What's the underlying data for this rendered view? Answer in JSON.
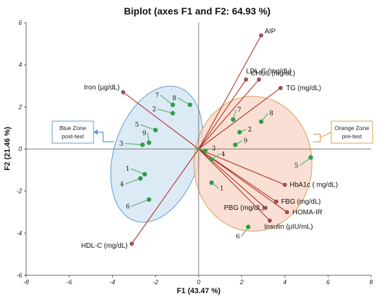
{
  "chart_data": {
    "type": "scatter",
    "subtype": "biplot",
    "title": "Biplot (axes F1 and F2: 64.93 %)",
    "xlabel": "F1 (43.47 %)",
    "ylabel": "F2 (21.46 %)",
    "xlim": [
      -8,
      8
    ],
    "ylim": [
      -6,
      6
    ],
    "x_ticks": [
      -8,
      -6,
      -4,
      -2,
      0,
      2,
      4,
      6,
      8
    ],
    "y_ticks": [
      -6,
      -4,
      -2,
      0,
      2,
      4,
      6
    ],
    "grid": false,
    "variables": [
      {
        "name": "AIP",
        "x": 2.9,
        "y": 5.4
      },
      {
        "name": "LDL-C (mg/dL)",
        "x": 2.2,
        "y": 3.3
      },
      {
        "name": "CHOL (mg/dL)",
        "x": 2.8,
        "y": 3.3
      },
      {
        "name": "TG (mg/dL)",
        "x": 3.8,
        "y": 2.9
      },
      {
        "name": "Iron (µg/dL)",
        "x": -3.5,
        "y": 2.7
      },
      {
        "name": "HbA1c ( mg/dL)",
        "x": 4.0,
        "y": -1.7
      },
      {
        "name": "FBG (mg/dL)",
        "x": 3.6,
        "y": -2.5
      },
      {
        "name": "HOMA-IR",
        "x": 4.1,
        "y": -3.0
      },
      {
        "name": "PBG (mg/dL)",
        "x": 3.1,
        "y": -2.8
      },
      {
        "name": "Insulin (µIU/mL)",
        "x": 3.3,
        "y": -3.4
      },
      {
        "name": "HDL-C (mg/dL)",
        "x": -3.1,
        "y": -4.5
      }
    ],
    "observations": [
      {
        "group": "post-test",
        "label": "1",
        "x": -2.5,
        "y": -1.2
      },
      {
        "group": "post-test",
        "label": "2",
        "x": -1.2,
        "y": 1.7
      },
      {
        "group": "post-test",
        "label": "3",
        "x": -2.6,
        "y": 0.2
      },
      {
        "group": "post-test",
        "label": "4",
        "x": -2.7,
        "y": -1.4
      },
      {
        "group": "post-test",
        "label": "5",
        "x": -2.0,
        "y": 0.9
      },
      {
        "group": "post-test",
        "label": "6",
        "x": -2.3,
        "y": -2.4
      },
      {
        "group": "post-test",
        "label": "7",
        "x": -1.2,
        "y": 2.1
      },
      {
        "group": "post-test",
        "label": "8",
        "x": -0.4,
        "y": 2.1
      },
      {
        "group": "post-test",
        "label": "9",
        "x": -2.3,
        "y": 0.3
      },
      {
        "group": "pre-test",
        "label": "1",
        "x": 0.6,
        "y": -1.6
      },
      {
        "group": "pre-test",
        "label": "2",
        "x": 1.9,
        "y": 0.8
      },
      {
        "group": "pre-test",
        "label": "3",
        "x": 0.3,
        "y": -0.1
      },
      {
        "group": "pre-test",
        "label": "4",
        "x": 0.6,
        "y": -0.5
      },
      {
        "group": "pre-test",
        "label": "5",
        "x": 5.2,
        "y": -0.4
      },
      {
        "group": "pre-test",
        "label": "6",
        "x": 2.3,
        "y": -3.7
      },
      {
        "group": "pre-test",
        "label": "7",
        "x": 1.6,
        "y": 1.4
      },
      {
        "group": "pre-test",
        "label": "8",
        "x": 2.9,
        "y": 1.3
      },
      {
        "group": "pre-test",
        "label": "9",
        "x": 1.7,
        "y": 0.2
      }
    ],
    "zones": [
      {
        "name": "Blue Zone",
        "sub": "post-test",
        "color": "#5b9bd5",
        "fill": "#d6e6f5"
      },
      {
        "name": "Orange Zone",
        "sub": "pre-test",
        "color": "#d8a05a",
        "fill": "#f9d7c9"
      }
    ],
    "colors": {
      "loading_line": "#b03020",
      "loading_marker": "#b05050",
      "point": "#2e9e4a",
      "label_leader": "#7cbf8a"
    }
  }
}
